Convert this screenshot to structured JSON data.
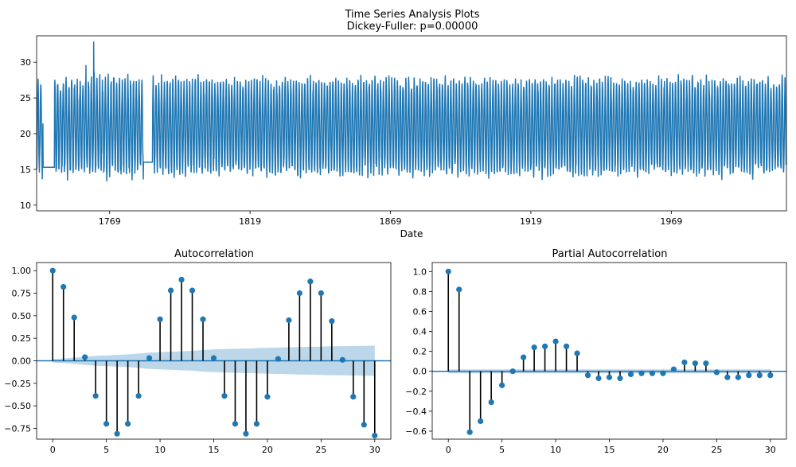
{
  "figure": {
    "title_line1": "Time Series Analysis Plots",
    "title_line2": "Dickey-Fuller: p=0.00000"
  },
  "colors": {
    "line": "#1f77b4",
    "stem": "#000000",
    "marker": "#1f77b4",
    "band": "#a6c8e3"
  },
  "chart_data": [
    {
      "type": "line",
      "xlabel": "Date",
      "ylabel": "",
      "xlim": [
        1743,
        2010
      ],
      "ylim": [
        9.2,
        33.7
      ],
      "x_ticks": [
        1769,
        1819,
        1869,
        1919,
        1969
      ],
      "y_ticks": [
        10,
        15,
        20,
        25,
        30
      ],
      "grid": false,
      "series": [
        {
          "x_start": 1743.0,
          "x_step": 0.0833,
          "seasonal_amplitude": 6.3,
          "mean": 21.0,
          "notes": "monthly temperature series, seasonal oscillation roughly 12-29, flat segment ~15.3 around 1745-1749 and ~16 around 1781-1784, spike to ~33 near 1763"
        }
      ]
    },
    {
      "type": "stem",
      "title": "Autocorrelation",
      "xlim": [
        -1.5,
        31.5
      ],
      "ylim": [
        -0.87,
        1.09
      ],
      "x_ticks": [
        0,
        5,
        10,
        15,
        20,
        25,
        30
      ],
      "y_ticks": [
        -0.75,
        -0.5,
        -0.25,
        0.0,
        0.25,
        0.5,
        0.75,
        1.0
      ],
      "y_tick_labels": [
        "−0.75",
        "−0.50",
        "−0.25",
        "0.00",
        "0.25",
        "0.50",
        "0.75",
        "1.00"
      ],
      "lags": [
        0,
        1,
        2,
        3,
        4,
        5,
        6,
        7,
        8,
        9,
        10,
        11,
        12,
        13,
        14,
        15,
        16,
        17,
        18,
        19,
        20,
        21,
        22,
        23,
        24,
        25,
        26,
        27,
        28,
        29,
        30
      ],
      "values": [
        1.0,
        0.82,
        0.48,
        0.04,
        -0.39,
        -0.7,
        -0.81,
        -0.7,
        -0.39,
        0.03,
        0.46,
        0.78,
        0.9,
        0.78,
        0.46,
        0.03,
        -0.39,
        -0.7,
        -0.81,
        -0.7,
        -0.4,
        0.02,
        0.45,
        0.75,
        0.88,
        0.75,
        0.44,
        0.01,
        -0.4,
        -0.71,
        -0.83
      ],
      "confidence_band": {
        "lags": [
          0,
          1,
          2,
          3,
          4,
          5,
          6,
          7,
          8,
          9,
          10,
          11,
          12,
          13,
          14,
          15,
          16,
          17,
          18,
          19,
          20,
          21,
          22,
          23,
          24,
          25,
          26,
          27,
          28,
          29,
          30
        ],
        "half_width": [
          0.02,
          0.025,
          0.035,
          0.045,
          0.055,
          0.06,
          0.065,
          0.07,
          0.08,
          0.09,
          0.095,
          0.1,
          0.105,
          0.11,
          0.12,
          0.125,
          0.13,
          0.133,
          0.136,
          0.14,
          0.143,
          0.146,
          0.15,
          0.152,
          0.155,
          0.157,
          0.16,
          0.162,
          0.164,
          0.166,
          0.168
        ]
      }
    },
    {
      "type": "stem",
      "title": "Partial Autocorrelation",
      "xlim": [
        -1.5,
        31.5
      ],
      "ylim": [
        -0.68,
        1.09
      ],
      "x_ticks": [
        0,
        5,
        10,
        15,
        20,
        25,
        30
      ],
      "y_ticks": [
        -0.6,
        -0.4,
        -0.2,
        0.0,
        0.2,
        0.4,
        0.6,
        0.8,
        1.0
      ],
      "y_tick_labels": [
        "−0.6",
        "−0.4",
        "−0.2",
        "0.0",
        "0.2",
        "0.4",
        "0.6",
        "0.8",
        "1.0"
      ],
      "lags": [
        0,
        1,
        2,
        3,
        4,
        5,
        6,
        7,
        8,
        9,
        10,
        11,
        12,
        13,
        14,
        15,
        16,
        17,
        18,
        19,
        20,
        21,
        22,
        23,
        24,
        25,
        26,
        27,
        28,
        29,
        30
      ],
      "values": [
        1.0,
        0.82,
        -0.61,
        -0.5,
        -0.31,
        -0.14,
        0.0,
        0.14,
        0.24,
        0.25,
        0.3,
        0.25,
        0.18,
        -0.04,
        -0.07,
        -0.06,
        -0.07,
        -0.03,
        -0.02,
        -0.02,
        -0.02,
        0.02,
        0.09,
        0.08,
        0.08,
        -0.01,
        -0.06,
        -0.06,
        -0.04,
        -0.04,
        -0.04
      ],
      "confidence_band": {
        "lags": [
          0,
          30
        ],
        "half_width": [
          0.02,
          0.02
        ]
      }
    }
  ]
}
